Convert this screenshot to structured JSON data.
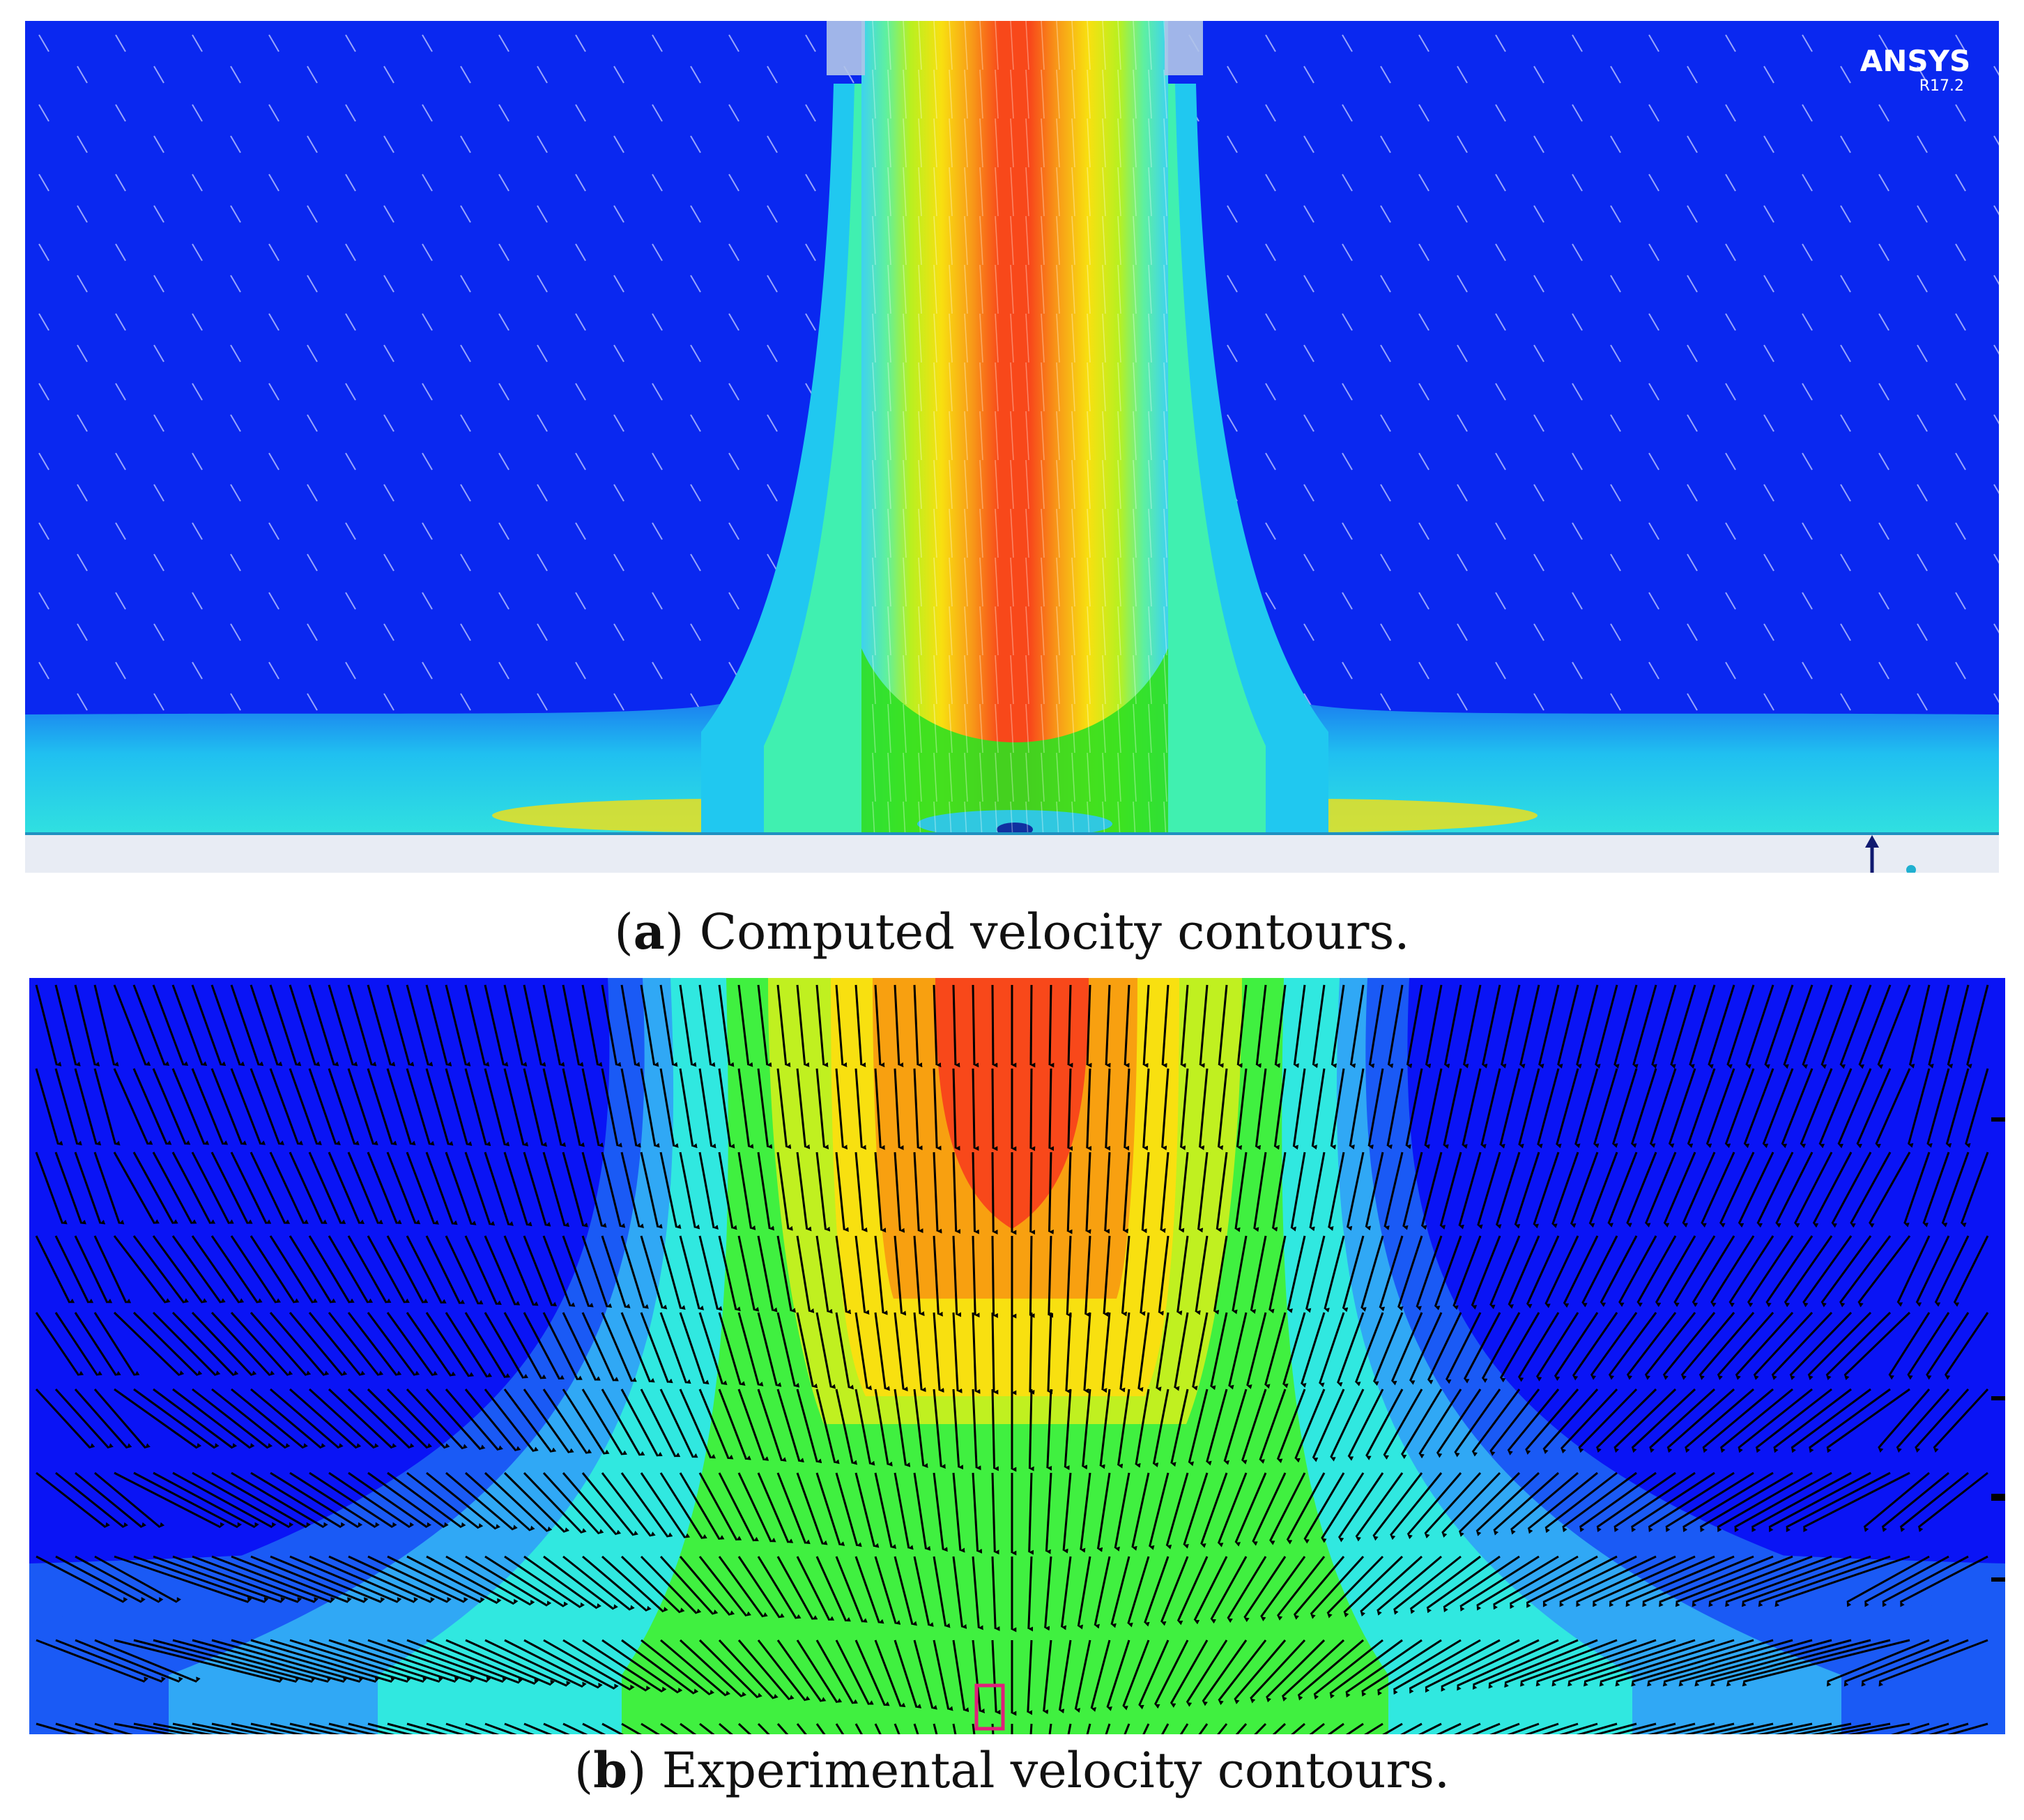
{
  "figure": {
    "panel_a": {
      "logo": {
        "brand": "ANSYS",
        "version": "R17.2"
      },
      "caption": {
        "letter": "a",
        "text": "Computed velocity contours."
      },
      "colors": {
        "background": "#0a28f0",
        "jet_core": "#fa2a0a",
        "floor": "#e8ecf4"
      }
    },
    "panel_b": {
      "caption": {
        "letter": "b",
        "text": "Experimental velocity contours."
      },
      "colors": {
        "background": "#0a14f5",
        "arrow": "#000000",
        "marker": "#e0207a"
      }
    }
  }
}
